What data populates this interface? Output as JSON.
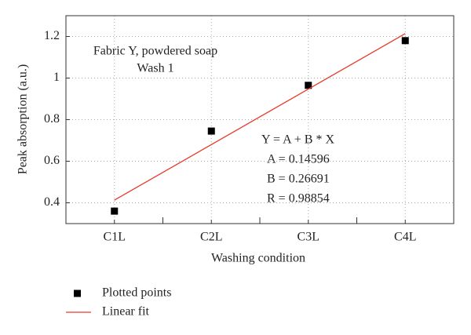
{
  "chart_data": {
    "type": "scatter",
    "x_label": "Washing condition",
    "y_label": "Peak absorption (a.u.)",
    "annotations": [
      "Fabric Y, powdered soap",
      "Wash 1",
      "Y = A + B * X",
      "A = 0.14596",
      "B = 0.26691",
      "R = 0.98854"
    ],
    "categories": [
      "C1L",
      "C2L",
      "C3L",
      "C4L"
    ],
    "series": [
      {
        "name": "Plotted points",
        "type": "scatter",
        "color": "#000000",
        "values": [
          0.36,
          0.745,
          0.965,
          1.18
        ]
      },
      {
        "name": "Linear fit",
        "type": "line",
        "color": "#e8392a",
        "values": [
          0.413,
          0.68,
          0.947,
          1.214
        ]
      }
    ],
    "ylim": [
      0.3,
      1.3
    ],
    "yticks": [
      0.4,
      0.6,
      0.8,
      1,
      1.2
    ],
    "grid": true
  }
}
